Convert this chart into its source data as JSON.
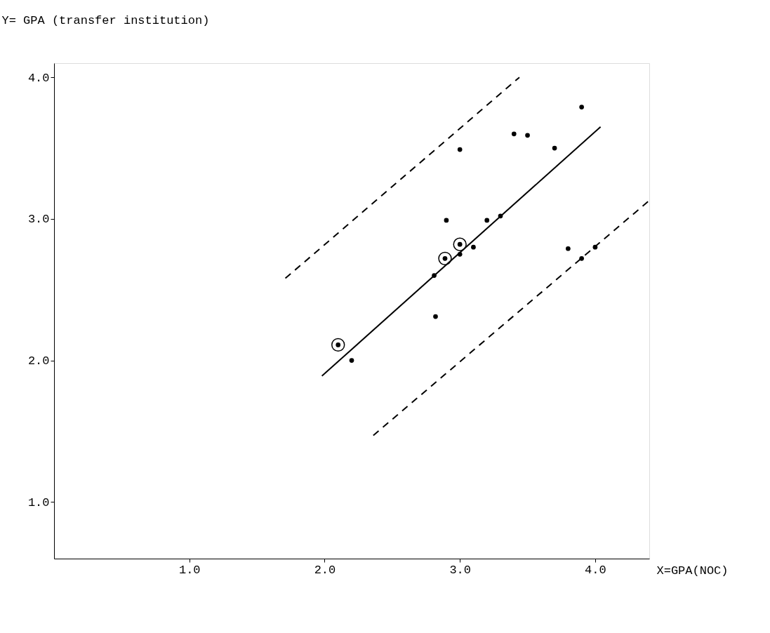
{
  "chart_data": {
    "type": "scatter",
    "xlabel": "X=GPA(NOC)",
    "ylabel": "Y= GPA (transfer institution)",
    "xlim": [
      0,
      4.4
    ],
    "ylim": [
      0.6,
      4.1
    ],
    "xticks": [
      {
        "value": 1,
        "label": "1.0"
      },
      {
        "value": 2,
        "label": "2.0"
      },
      {
        "value": 3,
        "label": "3.0"
      },
      {
        "value": 4,
        "label": "4.0"
      }
    ],
    "yticks": [
      {
        "value": 1,
        "label": "1.0"
      },
      {
        "value": 2,
        "label": "2.0"
      },
      {
        "value": 3,
        "label": "3.0"
      },
      {
        "value": 4,
        "label": "4.0"
      }
    ],
    "grid": false,
    "series": [
      {
        "type": "scatter",
        "color": "#000000",
        "x": [
          2.1,
          2.89,
          3.0,
          2.2,
          2.82,
          2.81,
          2.9,
          3.0,
          3.0,
          3.1,
          3.2,
          3.3,
          3.4,
          3.5,
          3.7,
          3.8,
          3.9,
          3.9,
          4.0
        ],
        "values": [
          2.11,
          2.72,
          2.82,
          2.0,
          2.31,
          2.6,
          2.99,
          2.75,
          3.49,
          2.8,
          2.99,
          3.02,
          3.6,
          3.59,
          3.5,
          2.79,
          3.79,
          2.72,
          2.8
        ]
      },
      {
        "type": "scatter",
        "marker": "circle",
        "color": "#000000",
        "x": [
          2.1,
          2.89,
          3.0
        ],
        "values": [
          2.11,
          2.72,
          2.82
        ]
      },
      {
        "type": "line",
        "line_style": "solid",
        "color": "#000000",
        "x": [
          1.98,
          4.04
        ],
        "values": [
          1.89,
          3.65
        ]
      },
      {
        "type": "line",
        "line_style": "dashed",
        "color": "#000000",
        "x": [
          1.71,
          3.44
        ],
        "values": [
          2.58,
          4.0
        ]
      },
      {
        "type": "line",
        "line_style": "dashed",
        "color": "#000000",
        "x": [
          2.36,
          4.4
        ],
        "values": [
          1.47,
          3.13
        ]
      }
    ]
  }
}
